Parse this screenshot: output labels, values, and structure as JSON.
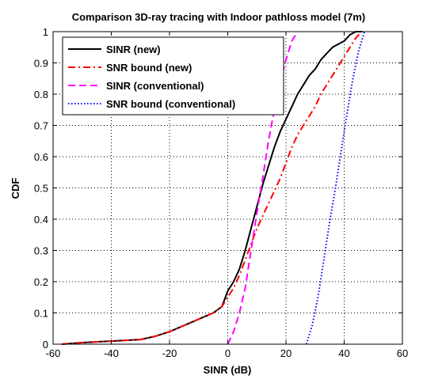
{
  "chart_data": {
    "type": "line",
    "title": "Comparison 3D-ray tracing with Indoor pathloss model (7m)",
    "xlabel": "SINR (dB)",
    "ylabel": "CDF",
    "xlim": [
      -60,
      60
    ],
    "ylim": [
      0,
      1
    ],
    "xticks": [
      -60,
      -40,
      -20,
      0,
      20,
      40,
      60
    ],
    "yticks": [
      0,
      0.1,
      0.2,
      0.3,
      0.4,
      0.5,
      0.6,
      0.7,
      0.8,
      0.9,
      1
    ],
    "grid": true,
    "legend_position": "top-left",
    "series": [
      {
        "name": "SINR (new)",
        "color": "#000000",
        "style": "solid",
        "x": [
          -57,
          -50,
          -40,
          -30,
          -25,
          -20,
          -15,
          -10,
          -5,
          -2,
          0,
          2,
          4,
          6,
          8,
          10,
          12,
          14,
          16,
          18,
          20,
          22,
          24,
          26,
          28,
          30,
          32,
          34,
          36,
          38,
          40,
          42,
          44,
          46
        ],
        "y": [
          0,
          0.005,
          0.01,
          0.015,
          0.025,
          0.04,
          0.06,
          0.08,
          0.1,
          0.12,
          0.17,
          0.2,
          0.24,
          0.3,
          0.37,
          0.44,
          0.51,
          0.57,
          0.63,
          0.68,
          0.72,
          0.76,
          0.8,
          0.83,
          0.86,
          0.88,
          0.91,
          0.93,
          0.95,
          0.96,
          0.97,
          0.99,
          1,
          1
        ]
      },
      {
        "name": "SNR bound (new)",
        "color": "#ff0000",
        "style": "dashdot",
        "x": [
          -57,
          -50,
          -40,
          -30,
          -25,
          -20,
          -15,
          -10,
          -5,
          -2,
          0,
          2,
          4,
          6,
          8,
          10,
          12,
          14,
          16,
          18,
          20,
          22,
          24,
          26,
          28,
          30,
          32,
          34,
          36,
          38,
          40,
          42,
          44,
          46,
          47
        ],
        "y": [
          0,
          0.005,
          0.01,
          0.015,
          0.025,
          0.04,
          0.06,
          0.08,
          0.1,
          0.12,
          0.15,
          0.18,
          0.22,
          0.27,
          0.32,
          0.37,
          0.41,
          0.45,
          0.49,
          0.53,
          0.58,
          0.63,
          0.67,
          0.7,
          0.73,
          0.76,
          0.8,
          0.83,
          0.86,
          0.89,
          0.92,
          0.95,
          0.98,
          1,
          1
        ]
      },
      {
        "name": "SINR (conventional)",
        "color": "#ff00ff",
        "style": "dashed",
        "x": [
          0,
          2,
          4,
          6,
          8,
          10,
          12,
          14,
          16,
          18,
          20,
          22,
          24
        ],
        "y": [
          0,
          0.04,
          0.1,
          0.18,
          0.3,
          0.42,
          0.53,
          0.65,
          0.75,
          0.84,
          0.91,
          0.97,
          1
        ]
      },
      {
        "name": "SNR bound (conventional)",
        "color": "#0000ff",
        "style": "dotted",
        "x": [
          27,
          29,
          31,
          33,
          35,
          37,
          39,
          41,
          43,
          45,
          47
        ],
        "y": [
          0,
          0.06,
          0.15,
          0.27,
          0.39,
          0.5,
          0.62,
          0.74,
          0.85,
          0.94,
          1
        ]
      }
    ]
  }
}
